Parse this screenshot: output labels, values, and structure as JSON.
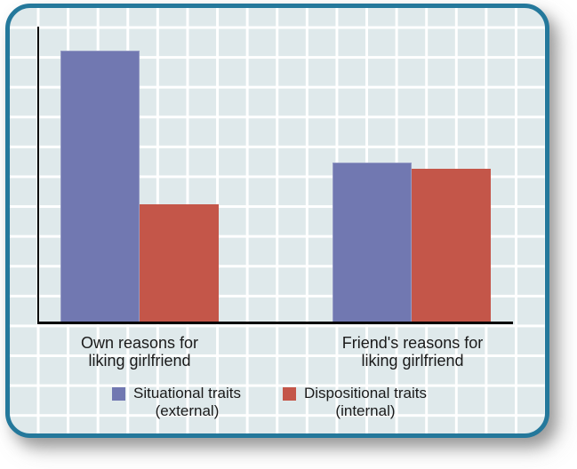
{
  "figure": {
    "page_bg": "#ffffff",
    "card_bg": "#dfe9eb",
    "grid_color": "#ffffff",
    "border_color": "#24789b",
    "axis_color": "#000000",
    "text_color": "#1a1a1a"
  },
  "chart_data": {
    "type": "bar",
    "title": "",
    "xlabel": "",
    "ylabel": "",
    "categories": [
      "Own reasons for liking girlfriend",
      "Friend's reasons for liking girlfriend"
    ],
    "categories_lines": [
      [
        "Own reasons for",
        "liking girlfriend"
      ],
      [
        "Friend's reasons for",
        "liking girlfriend"
      ]
    ],
    "series": [
      {
        "name": "Situational traits (external)",
        "name_lines": [
          "Situational traits",
          "(external)"
        ],
        "color": "#7178b1",
        "values": [
          92,
          54
        ]
      },
      {
        "name": "Dispositional traits (internal)",
        "name_lines": [
          "Dispositional traits",
          "(internal)"
        ],
        "color": "#c45649",
        "values": [
          40,
          52
        ]
      }
    ],
    "ylim": [
      0,
      100
    ],
    "y_axis_ticks": "none shown",
    "grid": true,
    "legend_position": "bottom"
  }
}
